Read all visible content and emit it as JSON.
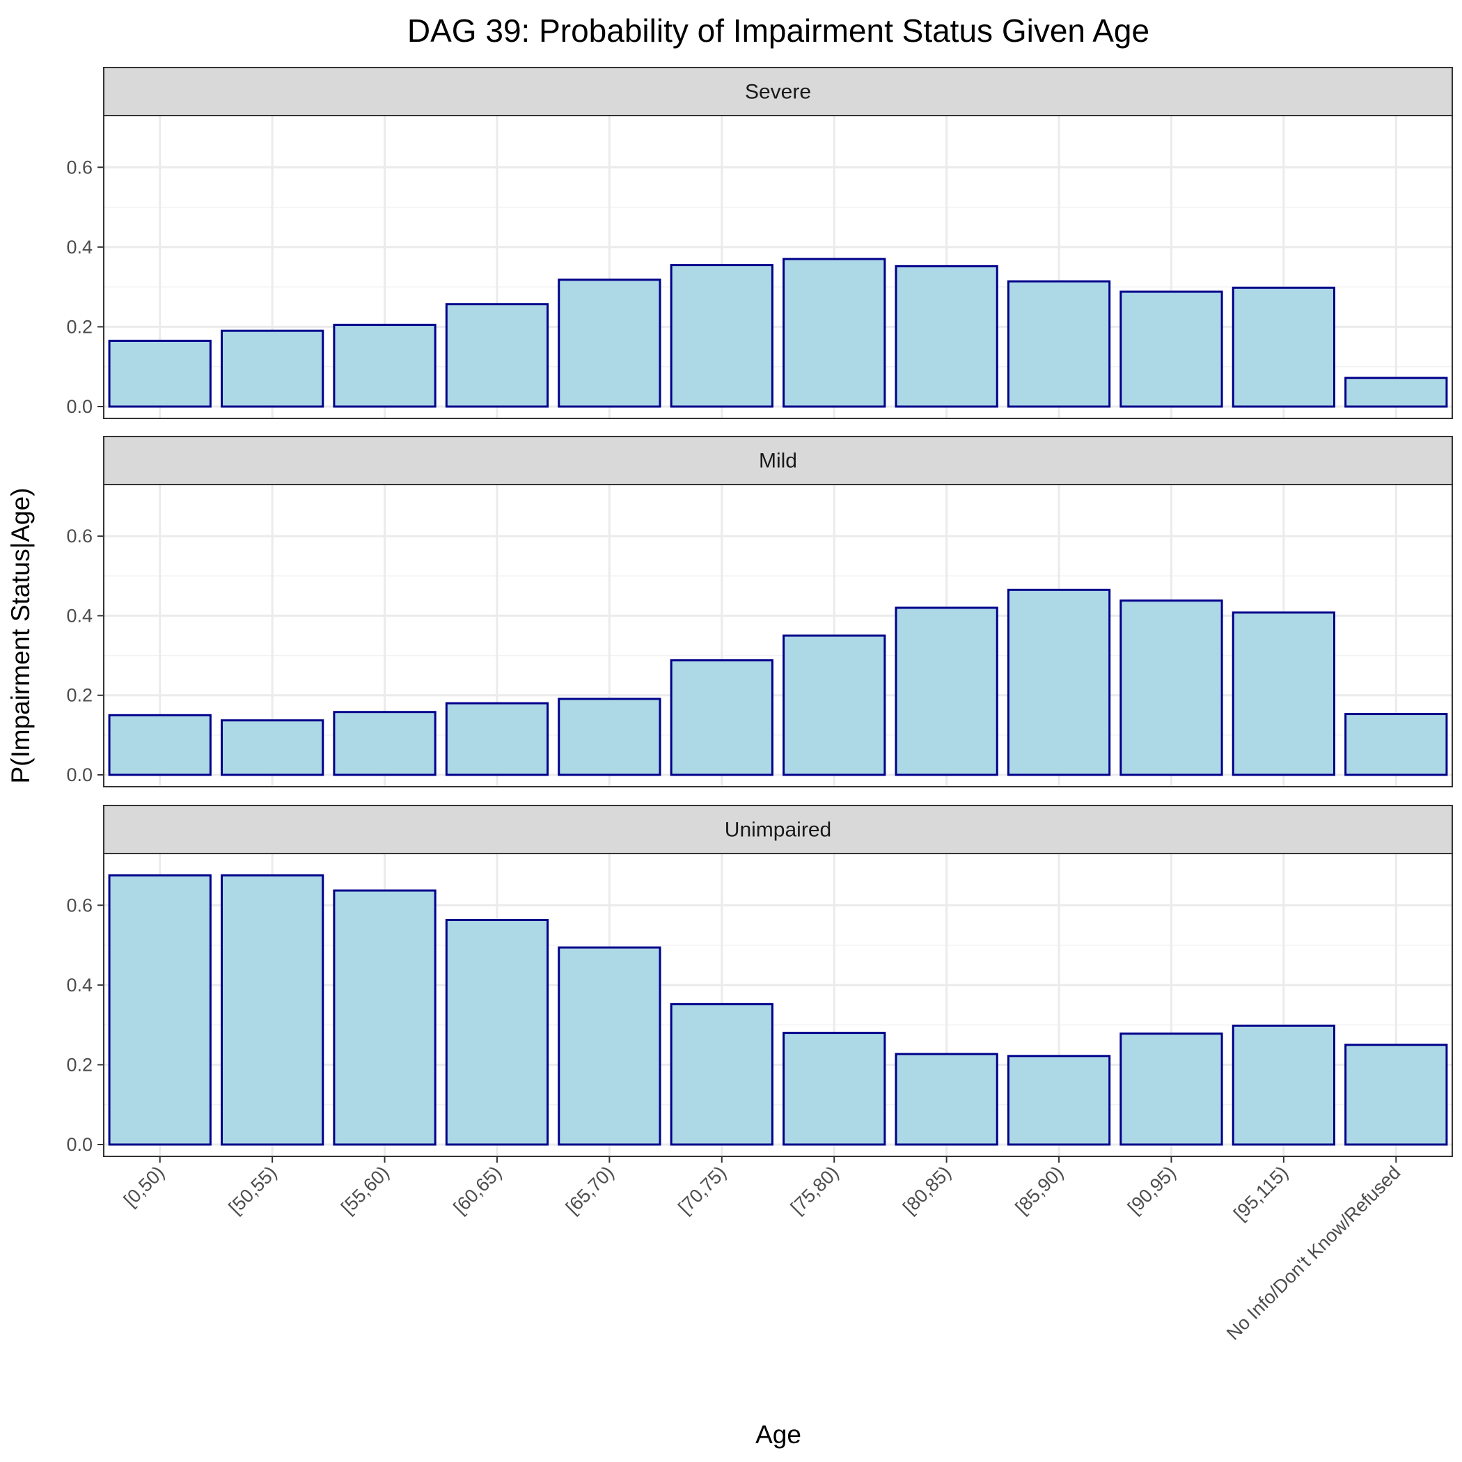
{
  "chart_data": {
    "type": "bar",
    "title": "DAG 39: Probability of Impairment Status Given Age",
    "xlabel": "Age",
    "ylabel": "P(Impairment Status|Age)",
    "ylim": [
      0,
      0.7
    ],
    "yticks": [
      0.0,
      0.2,
      0.4,
      0.6
    ],
    "ytick_labels": [
      "0.0",
      "0.2",
      "0.4",
      "0.6"
    ],
    "grid": true,
    "categories": [
      "[0,50)",
      "[50,55)",
      "[55,60)",
      "[60,65)",
      "[65,70)",
      "[70,75)",
      "[75,80)",
      "[80,85)",
      "[85,90)",
      "[90,95)",
      "[95,115)",
      "No Info/Don't Know/Refused"
    ],
    "bar_fill": "#ADD8E6",
    "bar_border": "#00008B",
    "facets": [
      {
        "name": "Severe",
        "values": [
          0.165,
          0.19,
          0.205,
          0.257,
          0.318,
          0.355,
          0.37,
          0.352,
          0.314,
          0.288,
          0.298,
          0.072
        ]
      },
      {
        "name": "Mild",
        "values": [
          0.15,
          0.137,
          0.158,
          0.18,
          0.191,
          0.288,
          0.35,
          0.42,
          0.465,
          0.438,
          0.408,
          0.153
        ]
      },
      {
        "name": "Unimpaired",
        "values": [
          0.675,
          0.675,
          0.637,
          0.563,
          0.494,
          0.352,
          0.28,
          0.227,
          0.222,
          0.278,
          0.298,
          0.25
        ]
      }
    ]
  }
}
